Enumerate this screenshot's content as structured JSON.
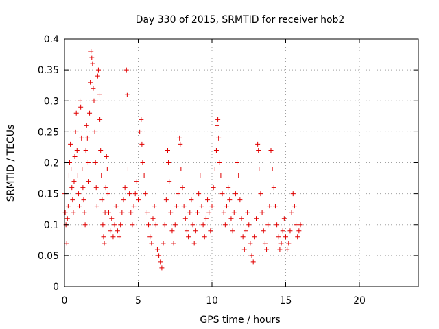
{
  "chart_data": {
    "type": "scatter",
    "title": "Day 330 of 2015, SRMTID for receiver hob2",
    "xlabel": "GPS time / hours",
    "ylabel": "SRMTID / TECUs",
    "xlim": [
      0,
      24
    ],
    "ylim": [
      0,
      0.4
    ],
    "xticks": [
      0,
      5,
      10,
      15,
      20
    ],
    "xtick_labels": [
      "0",
      "5",
      "10",
      "15",
      "20"
    ],
    "yticks": [
      0,
      0.05,
      0.1,
      0.15,
      0.2,
      0.25,
      0.3,
      0.35,
      0.4
    ],
    "ytick_labels": [
      "0",
      "0.05",
      "0.1",
      "0.15",
      "0.2",
      "0.25",
      "0.3",
      "0.35",
      "0.4"
    ],
    "grid": true,
    "marker": "+",
    "color": "#e00000",
    "series": [
      {
        "name": "hob2",
        "points": [
          [
            0.0,
            0.15
          ],
          [
            0.05,
            0.12
          ],
          [
            0.1,
            0.1
          ],
          [
            0.15,
            0.07
          ],
          [
            0.2,
            0.11
          ],
          [
            0.25,
            0.13
          ],
          [
            0.3,
            0.18
          ],
          [
            0.35,
            0.2
          ],
          [
            0.4,
            0.23
          ],
          [
            0.45,
            0.19
          ],
          [
            0.5,
            0.16
          ],
          [
            0.55,
            0.14
          ],
          [
            0.6,
            0.12
          ],
          [
            0.65,
            0.17
          ],
          [
            0.7,
            0.21
          ],
          [
            0.75,
            0.25
          ],
          [
            0.8,
            0.28
          ],
          [
            0.85,
            0.22
          ],
          [
            0.9,
            0.18
          ],
          [
            0.95,
            0.15
          ],
          [
            1.0,
            0.13
          ],
          [
            1.05,
            0.3
          ],
          [
            1.1,
            0.29
          ],
          [
            1.15,
            0.24
          ],
          [
            1.2,
            0.19
          ],
          [
            1.25,
            0.16
          ],
          [
            1.3,
            0.14
          ],
          [
            1.35,
            0.12
          ],
          [
            1.4,
            0.1
          ],
          [
            1.45,
            0.22
          ],
          [
            1.5,
            0.26
          ],
          [
            1.55,
            0.24
          ],
          [
            1.6,
            0.2
          ],
          [
            1.65,
            0.17
          ],
          [
            1.7,
            0.28
          ],
          [
            1.75,
            0.33
          ],
          [
            1.8,
            0.38
          ],
          [
            1.85,
            0.37
          ],
          [
            1.9,
            0.36
          ],
          [
            1.95,
            0.32
          ],
          [
            2.0,
            0.3
          ],
          [
            2.05,
            0.25
          ],
          [
            2.1,
            0.2
          ],
          [
            2.15,
            0.16
          ],
          [
            2.2,
            0.13
          ],
          [
            2.25,
            0.34
          ],
          [
            2.3,
            0.35
          ],
          [
            2.35,
            0.31
          ],
          [
            2.4,
            0.27
          ],
          [
            2.45,
            0.22
          ],
          [
            2.5,
            0.18
          ],
          [
            2.55,
            0.14
          ],
          [
            2.6,
            0.1
          ],
          [
            2.65,
            0.08
          ],
          [
            2.7,
            0.07
          ],
          [
            2.75,
            0.12
          ],
          [
            2.8,
            0.16
          ],
          [
            2.85,
            0.21
          ],
          [
            2.9,
            0.19
          ],
          [
            2.95,
            0.15
          ],
          [
            3.0,
            0.12
          ],
          [
            3.1,
            0.09
          ],
          [
            3.2,
            0.11
          ],
          [
            3.3,
            0.08
          ],
          [
            3.4,
            0.1
          ],
          [
            3.5,
            0.13
          ],
          [
            3.6,
            0.09
          ],
          [
            3.7,
            0.08
          ],
          [
            3.8,
            0.1
          ],
          [
            3.9,
            0.12
          ],
          [
            4.0,
            0.14
          ],
          [
            4.1,
            0.16
          ],
          [
            4.2,
            0.35
          ],
          [
            4.25,
            0.31
          ],
          [
            4.3,
            0.19
          ],
          [
            4.4,
            0.15
          ],
          [
            4.5,
            0.12
          ],
          [
            4.6,
            0.1
          ],
          [
            4.7,
            0.13
          ],
          [
            4.8,
            0.15
          ],
          [
            4.9,
            0.17
          ],
          [
            5.0,
            0.14
          ],
          [
            5.1,
            0.25
          ],
          [
            5.2,
            0.27
          ],
          [
            5.25,
            0.23
          ],
          [
            5.3,
            0.2
          ],
          [
            5.4,
            0.18
          ],
          [
            5.5,
            0.15
          ],
          [
            5.6,
            0.12
          ],
          [
            5.7,
            0.1
          ],
          [
            5.8,
            0.08
          ],
          [
            5.9,
            0.07
          ],
          [
            6.0,
            0.11
          ],
          [
            6.1,
            0.13
          ],
          [
            6.2,
            0.1
          ],
          [
            6.3,
            0.06
          ],
          [
            6.4,
            0.05
          ],
          [
            6.5,
            0.04
          ],
          [
            6.6,
            0.03
          ],
          [
            6.7,
            0.07
          ],
          [
            6.8,
            0.1
          ],
          [
            6.9,
            0.14
          ],
          [
            7.0,
            0.22
          ],
          [
            7.05,
            0.2
          ],
          [
            7.1,
            0.17
          ],
          [
            7.2,
            0.12
          ],
          [
            7.3,
            0.09
          ],
          [
            7.4,
            0.07
          ],
          [
            7.5,
            0.1
          ],
          [
            7.6,
            0.13
          ],
          [
            7.7,
            0.15
          ],
          [
            7.8,
            0.24
          ],
          [
            7.85,
            0.23
          ],
          [
            7.9,
            0.19
          ],
          [
            8.0,
            0.16
          ],
          [
            8.1,
            0.13
          ],
          [
            8.2,
            0.11
          ],
          [
            8.3,
            0.09
          ],
          [
            8.4,
            0.08
          ],
          [
            8.5,
            0.12
          ],
          [
            8.6,
            0.14
          ],
          [
            8.7,
            0.1
          ],
          [
            8.8,
            0.07
          ],
          [
            8.9,
            0.09
          ],
          [
            9.0,
            0.12
          ],
          [
            9.1,
            0.15
          ],
          [
            9.2,
            0.18
          ],
          [
            9.3,
            0.13
          ],
          [
            9.4,
            0.1
          ],
          [
            9.5,
            0.08
          ],
          [
            9.6,
            0.11
          ],
          [
            9.7,
            0.14
          ],
          [
            9.8,
            0.12
          ],
          [
            9.9,
            0.09
          ],
          [
            10.0,
            0.13
          ],
          [
            10.1,
            0.16
          ],
          [
            10.2,
            0.19
          ],
          [
            10.3,
            0.22
          ],
          [
            10.35,
            0.26
          ],
          [
            10.4,
            0.27
          ],
          [
            10.45,
            0.24
          ],
          [
            10.5,
            0.2
          ],
          [
            10.6,
            0.18
          ],
          [
            10.7,
            0.15
          ],
          [
            10.8,
            0.12
          ],
          [
            10.9,
            0.1
          ],
          [
            11.0,
            0.13
          ],
          [
            11.1,
            0.16
          ],
          [
            11.2,
            0.14
          ],
          [
            11.3,
            0.11
          ],
          [
            11.4,
            0.09
          ],
          [
            11.5,
            0.12
          ],
          [
            11.6,
            0.15
          ],
          [
            11.7,
            0.2
          ],
          [
            11.8,
            0.18
          ],
          [
            11.9,
            0.14
          ],
          [
            12.0,
            0.11
          ],
          [
            12.1,
            0.08
          ],
          [
            12.2,
            0.06
          ],
          [
            12.3,
            0.09
          ],
          [
            12.4,
            0.12
          ],
          [
            12.5,
            0.1
          ],
          [
            12.6,
            0.07
          ],
          [
            12.7,
            0.05
          ],
          [
            12.8,
            0.04
          ],
          [
            12.9,
            0.08
          ],
          [
            13.0,
            0.11
          ],
          [
            13.1,
            0.23
          ],
          [
            13.15,
            0.22
          ],
          [
            13.2,
            0.19
          ],
          [
            13.3,
            0.15
          ],
          [
            13.4,
            0.12
          ],
          [
            13.5,
            0.09
          ],
          [
            13.6,
            0.07
          ],
          [
            13.7,
            0.06
          ],
          [
            13.8,
            0.1
          ],
          [
            13.9,
            0.13
          ],
          [
            14.0,
            0.22
          ],
          [
            14.1,
            0.19
          ],
          [
            14.2,
            0.16
          ],
          [
            14.3,
            0.13
          ],
          [
            14.4,
            0.1
          ],
          [
            14.5,
            0.08
          ],
          [
            14.6,
            0.06
          ],
          [
            14.7,
            0.07
          ],
          [
            14.8,
            0.09
          ],
          [
            14.9,
            0.11
          ],
          [
            15.0,
            0.08
          ],
          [
            15.1,
            0.06
          ],
          [
            15.2,
            0.07
          ],
          [
            15.3,
            0.09
          ],
          [
            15.4,
            0.12
          ],
          [
            15.5,
            0.15
          ],
          [
            15.6,
            0.13
          ],
          [
            15.7,
            0.1
          ],
          [
            15.8,
            0.08
          ],
          [
            15.9,
            0.09
          ],
          [
            16.0,
            0.1
          ]
        ]
      }
    ]
  }
}
